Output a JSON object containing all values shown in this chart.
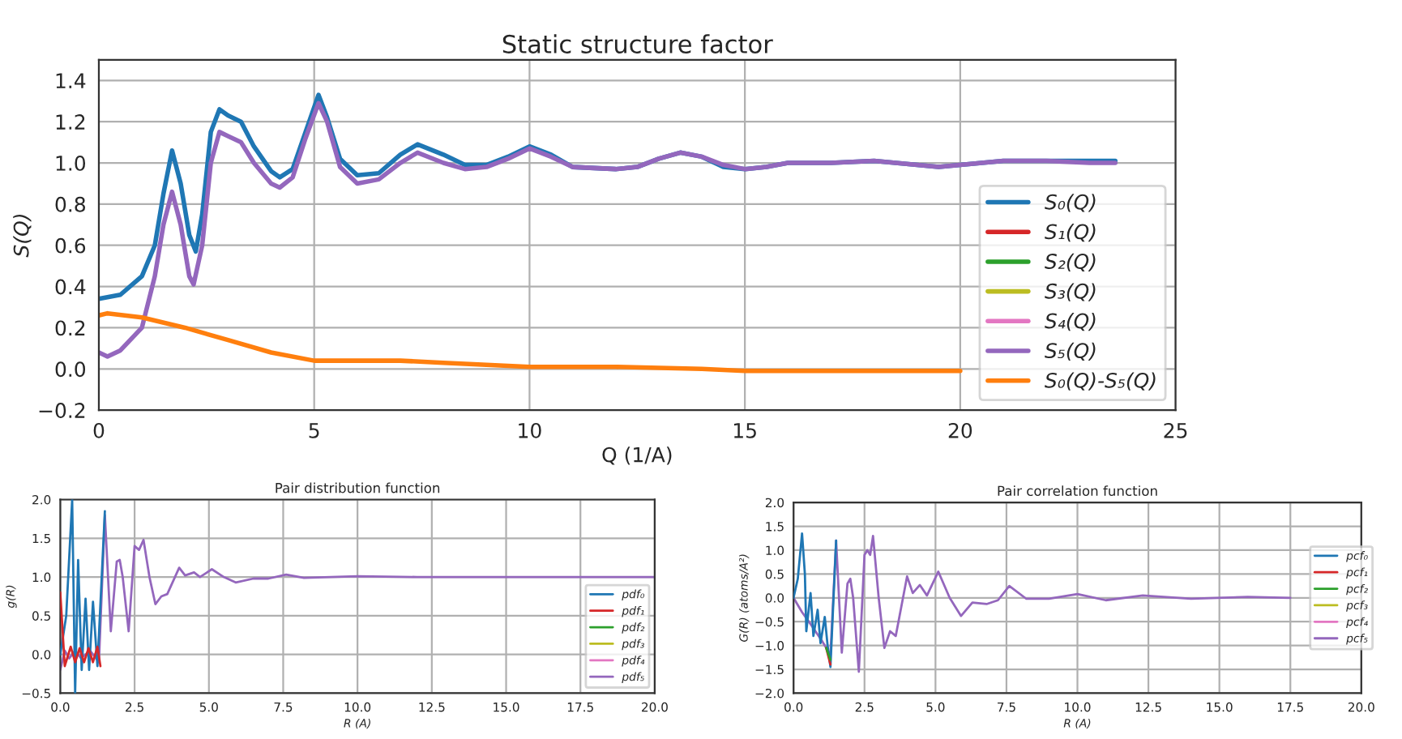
{
  "chart_data": [
    {
      "type": "line",
      "title": "Static structure factor",
      "xlabel": "Q (1/A)",
      "ylabel": "S(Q)",
      "xlim": [
        0,
        25
      ],
      "ylim": [
        -0.2,
        1.5
      ],
      "xticks": [
        0,
        5,
        10,
        15,
        20,
        25
      ],
      "yticks": [
        {
          "value": -0.2,
          "label": "−0.2"
        },
        {
          "value": 0,
          "label": "0.0"
        },
        {
          "value": 0.2,
          "label": "0.2"
        },
        {
          "value": 0.4,
          "label": "0.4"
        },
        {
          "value": 0.6,
          "label": "0.6"
        },
        {
          "value": 0.8,
          "label": "0.8"
        },
        {
          "value": 1.0,
          "label": "1.0"
        },
        {
          "value": 1.2,
          "label": "1.2"
        },
        {
          "value": 1.4,
          "label": "1.4"
        }
      ],
      "grid": true,
      "legend": "bottom right",
      "line_style": "solid",
      "marker": "none",
      "series": [
        {
          "name": "S₀(Q)",
          "color": "#1f77b4",
          "x": [
            0,
            0.5,
            1.0,
            1.3,
            1.5,
            1.7,
            1.9,
            2.1,
            2.25,
            2.4,
            2.6,
            2.8,
            3.0,
            3.3,
            3.6,
            4.0,
            4.2,
            4.5,
            4.8,
            5.1,
            5.3,
            5.6,
            6.0,
            6.5,
            7.0,
            7.4,
            8.0,
            8.5,
            9.0,
            9.5,
            10.0,
            10.5,
            11.0,
            12.0,
            12.5,
            13.0,
            13.5,
            14.0,
            14.5,
            15.0,
            15.5,
            16,
            17,
            18,
            19,
            19.5,
            20,
            20.5,
            21,
            22,
            23,
            23.6
          ],
          "values": [
            0.34,
            0.36,
            0.45,
            0.6,
            0.85,
            1.06,
            0.9,
            0.65,
            0.57,
            0.75,
            1.15,
            1.26,
            1.23,
            1.2,
            1.08,
            0.96,
            0.93,
            0.97,
            1.15,
            1.33,
            1.22,
            1.02,
            0.94,
            0.95,
            1.04,
            1.09,
            1.04,
            0.99,
            0.99,
            1.03,
            1.08,
            1.04,
            0.98,
            0.97,
            0.98,
            1.02,
            1.05,
            1.03,
            0.98,
            0.97,
            0.98,
            1.0,
            1.0,
            1.01,
            0.99,
            0.98,
            0.99,
            1.0,
            1.01,
            1.01,
            1.01,
            1.01
          ]
        },
        {
          "name": "S₁(Q)",
          "color": "#d62728"
        },
        {
          "name": "S₂(Q)",
          "color": "#2ca02c"
        },
        {
          "name": "S₃(Q)",
          "color": "#bcbd22"
        },
        {
          "name": "S₄(Q)",
          "color": "#e377c2"
        },
        {
          "name": "S₅(Q)",
          "color": "#9467bd",
          "x": [
            0,
            0.2,
            0.5,
            1.0,
            1.3,
            1.5,
            1.7,
            1.9,
            2.1,
            2.2,
            2.4,
            2.6,
            2.8,
            3.0,
            3.3,
            3.6,
            4.0,
            4.2,
            4.5,
            4.8,
            5.1,
            5.3,
            5.6,
            6.0,
            6.5,
            7.0,
            7.4,
            8.0,
            8.5,
            9.0,
            9.5,
            10,
            10.5,
            11,
            12,
            12.5,
            13,
            13.5,
            14,
            14.5,
            15,
            15.5,
            16,
            17,
            18,
            19,
            19.5,
            20,
            20.5,
            21,
            22,
            23,
            23.6
          ],
          "values": [
            0.08,
            0.06,
            0.09,
            0.2,
            0.45,
            0.7,
            0.86,
            0.7,
            0.45,
            0.41,
            0.6,
            1.0,
            1.15,
            1.13,
            1.1,
            1.0,
            0.9,
            0.88,
            0.93,
            1.12,
            1.29,
            1.2,
            0.98,
            0.9,
            0.92,
            1.0,
            1.05,
            1.0,
            0.97,
            0.98,
            1.02,
            1.07,
            1.03,
            0.98,
            0.97,
            0.98,
            1.02,
            1.05,
            1.03,
            0.99,
            0.97,
            0.98,
            1.0,
            1.0,
            1.01,
            0.99,
            0.98,
            0.99,
            1.0,
            1.01,
            1.01,
            1.0,
            1.0
          ]
        },
        {
          "name": "S₀(Q)-S₅(Q)",
          "color": "#ff7f0e",
          "x": [
            0,
            0.2,
            1.0,
            2.0,
            3.0,
            4.0,
            5.0,
            6.0,
            7.0,
            8.0,
            9.0,
            10,
            12,
            14,
            15,
            18,
            20
          ],
          "values": [
            0.26,
            0.27,
            0.25,
            0.2,
            0.14,
            0.08,
            0.04,
            0.04,
            0.04,
            0.03,
            0.02,
            0.01,
            0.01,
            0.0,
            -0.01,
            -0.01,
            -0.01
          ]
        }
      ]
    },
    {
      "type": "line",
      "title": "Pair distribution function",
      "xlabel": "R (A)",
      "ylabel": "g(R)",
      "xlim": [
        0,
        20
      ],
      "ylim": [
        -0.5,
        2.0
      ],
      "xticks": [
        {
          "value": 0,
          "label": "0.0"
        },
        {
          "value": 2.5,
          "label": "2.5"
        },
        {
          "value": 5,
          "label": "5.0"
        },
        {
          "value": 7.5,
          "label": "7.5"
        },
        {
          "value": 10,
          "label": "10.0"
        },
        {
          "value": 12.5,
          "label": "12.5"
        },
        {
          "value": 15,
          "label": "15.0"
        },
        {
          "value": 17.5,
          "label": "17.5"
        },
        {
          "value": 20,
          "label": "20.0"
        }
      ],
      "yticks": [
        {
          "value": -0.5,
          "label": "−0.5"
        },
        {
          "value": 0,
          "label": "0.0"
        },
        {
          "value": 0.5,
          "label": "0.5"
        },
        {
          "value": 1.0,
          "label": "1.0"
        },
        {
          "value": 1.5,
          "label": "1.5"
        },
        {
          "value": 2.0,
          "label": "2.0"
        }
      ],
      "grid": true,
      "legend": "bottom right",
      "line_style": "solid",
      "marker": "none",
      "series": [
        {
          "name": "pdf₀",
          "color": "#1f77b4",
          "x": [
            0,
            0.2,
            0.4,
            0.5,
            0.6,
            0.72,
            0.85,
            0.97,
            1.1,
            1.25,
            1.5
          ],
          "values": [
            0.0,
            0.5,
            2.0,
            -0.5,
            1.22,
            -0.2,
            0.72,
            -0.2,
            0.68,
            -0.15,
            1.85
          ]
        },
        {
          "name": "pdf₁",
          "color": "#d62728",
          "x": [
            0,
            0.15,
            0.35,
            0.5,
            0.65,
            0.8,
            0.95,
            1.1,
            1.25,
            1.35
          ],
          "values": [
            0.8,
            -0.15,
            0.1,
            -0.1,
            0.08,
            -0.1,
            0.08,
            -0.1,
            0.1,
            -0.15
          ]
        },
        {
          "name": "pdf₂",
          "color": "#2ca02c"
        },
        {
          "name": "pdf₃",
          "color": "#bcbd22"
        },
        {
          "name": "pdf₄",
          "color": "#e377c2"
        },
        {
          "name": "pdf₅",
          "color": "#9467bd",
          "x": [
            0,
            0.15,
            0.3,
            0.5,
            0.7,
            1.0,
            1.3,
            1.5,
            1.7,
            1.9,
            2.0,
            2.1,
            2.3,
            2.5,
            2.65,
            2.8,
            3.0,
            3.2,
            3.4,
            3.6,
            4.0,
            4.2,
            4.5,
            4.7,
            5.1,
            5.5,
            5.9,
            6.5,
            7.0,
            7.6,
            8.2,
            10,
            12,
            15,
            20
          ],
          "values": [
            -0.2,
            0.05,
            -0.05,
            0.05,
            -0.05,
            0.05,
            -0.1,
            1.8,
            0.3,
            1.2,
            1.22,
            1.0,
            0.3,
            1.4,
            1.35,
            1.48,
            1.0,
            0.65,
            0.75,
            0.78,
            1.12,
            1.02,
            1.06,
            1.0,
            1.1,
            1.0,
            0.93,
            0.98,
            0.98,
            1.03,
            0.99,
            1.01,
            1.0,
            1.0,
            1.0
          ]
        }
      ]
    },
    {
      "type": "line",
      "title": "Pair correlation function",
      "xlabel": "R (A)",
      "ylabel": "G(R) (atoms/A²)",
      "xlim": [
        0,
        20
      ],
      "ylim": [
        -2.0,
        2.0
      ],
      "xticks": [
        {
          "value": 0,
          "label": "0.0"
        },
        {
          "value": 2.5,
          "label": "2.5"
        },
        {
          "value": 5,
          "label": "5.0"
        },
        {
          "value": 7.5,
          "label": "7.5"
        },
        {
          "value": 10,
          "label": "10.0"
        },
        {
          "value": 12.5,
          "label": "12.5"
        },
        {
          "value": 15,
          "label": "15.0"
        },
        {
          "value": 17.5,
          "label": "17.5"
        },
        {
          "value": 20,
          "label": "20.0"
        }
      ],
      "yticks": [
        {
          "value": -2.0,
          "label": "−2.0"
        },
        {
          "value": -1.5,
          "label": "−1.5"
        },
        {
          "value": -1.0,
          "label": "−1.0"
        },
        {
          "value": -0.5,
          "label": "−0.5"
        },
        {
          "value": 0,
          "label": "0.0"
        },
        {
          "value": 0.5,
          "label": "0.5"
        },
        {
          "value": 1.0,
          "label": "1.0"
        },
        {
          "value": 1.5,
          "label": "1.5"
        },
        {
          "value": 2.0,
          "label": "2.0"
        }
      ],
      "grid": true,
      "legend": "right",
      "line_style": "solid",
      "marker": "none",
      "series": [
        {
          "name": "pcf₀",
          "color": "#1f77b4",
          "x": [
            0,
            0.15,
            0.3,
            0.4,
            0.45,
            0.6,
            0.7,
            0.85,
            0.95,
            1.1,
            1.2,
            1.3,
            1.5
          ],
          "values": [
            0,
            0.4,
            1.35,
            0.5,
            -0.7,
            0.1,
            -0.8,
            -0.25,
            -0.95,
            -0.4,
            -1.0,
            -1.45,
            1.2
          ]
        },
        {
          "name": "pcf₁",
          "color": "#d62728",
          "x": [
            1.15,
            1.3
          ],
          "values": [
            -1.05,
            -1.4
          ]
        },
        {
          "name": "pcf₂",
          "color": "#2ca02c",
          "x": [
            1.15,
            1.3
          ],
          "values": [
            -1.05,
            -1.3
          ]
        },
        {
          "name": "pcf₃",
          "color": "#bcbd22"
        },
        {
          "name": "pcf₄",
          "color": "#e377c2"
        },
        {
          "name": "pcf₅",
          "color": "#9467bd",
          "x": [
            0,
            0.3,
            0.6,
            1.0,
            1.3,
            1.5,
            1.7,
            1.9,
            2.0,
            2.1,
            2.3,
            2.5,
            2.6,
            2.7,
            2.8,
            3.0,
            3.2,
            3.4,
            3.6,
            4.0,
            4.2,
            4.45,
            4.7,
            5.1,
            5.5,
            5.9,
            6.3,
            6.8,
            7.2,
            7.6,
            8.2,
            9.0,
            10,
            11,
            12.3,
            14,
            16,
            17.5
          ],
          "values": [
            0,
            -0.3,
            -0.55,
            -0.9,
            -1.2,
            1.2,
            -1.15,
            0.3,
            0.4,
            0.0,
            -1.55,
            0.9,
            1.0,
            0.9,
            1.3,
            0.0,
            -1.05,
            -0.7,
            -0.8,
            0.45,
            0.1,
            0.27,
            0.05,
            0.55,
            0.0,
            -0.38,
            -0.1,
            -0.13,
            -0.05,
            0.25,
            -0.02,
            -0.02,
            0.08,
            -0.05,
            0.05,
            -0.02,
            0.02,
            0.0
          ]
        }
      ]
    }
  ]
}
